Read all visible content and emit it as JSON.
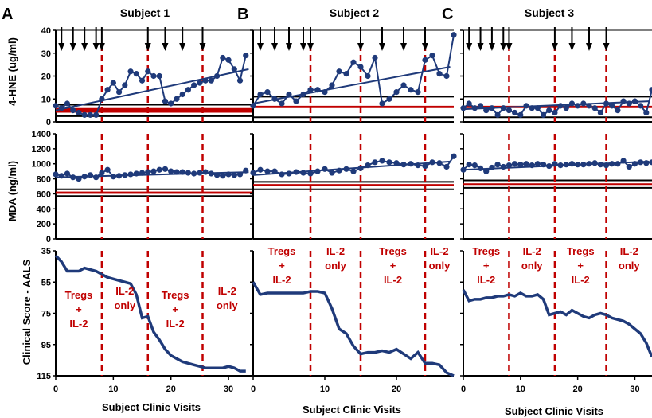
{
  "colors": {
    "series": "#1f3a7a",
    "reference": "#c00000",
    "dashed": "#c00000",
    "axis": "#000000",
    "phase_text": "#c00000"
  },
  "y_labels": {
    "hne": "4-HNE (ug/ml)",
    "mda": "MDA (ng/ml)",
    "score": "Clinical Score - AALS"
  },
  "x_label": "Subject Clinic Visits",
  "y_ticks": {
    "hne": [
      "0",
      "10",
      "20",
      "30",
      "40"
    ],
    "mda": [
      "0",
      "200",
      "400",
      "600",
      "800",
      "1000",
      "1200",
      "1400"
    ],
    "score": [
      "35",
      "55",
      "75",
      "95",
      "115"
    ]
  },
  "x_ticks": [
    "0",
    "10",
    "20",
    "30"
  ],
  "panels": [
    {
      "letter": "A",
      "title": "Subject 1",
      "phases": [
        {
          "lines": [
            "Tregs",
            "+",
            "IL-2"
          ]
        },
        {
          "lines": [
            "IL-2",
            "only"
          ]
        },
        {
          "lines": [
            "Tregs",
            "+",
            "IL-2"
          ]
        },
        {
          "lines": [
            "IL-2",
            "only"
          ]
        }
      ]
    },
    {
      "letter": "B",
      "title": "Subject 2",
      "phases": [
        {
          "lines": [
            "Tregs",
            "+",
            "IL-2"
          ]
        },
        {
          "lines": [
            "IL-2",
            "only"
          ]
        },
        {
          "lines": [
            "Tregs",
            "+",
            "IL-2"
          ]
        },
        {
          "lines": [
            "IL-2",
            "only"
          ]
        }
      ]
    },
    {
      "letter": "C",
      "title": "Subject 3",
      "phases": [
        {
          "lines": [
            "Tregs",
            "+",
            "IL-2"
          ]
        },
        {
          "lines": [
            "IL-2",
            "only"
          ]
        },
        {
          "lines": [
            "Tregs",
            "+",
            "IL-2"
          ]
        },
        {
          "lines": [
            "IL-2",
            "only"
          ]
        }
      ]
    }
  ],
  "chart_data": [
    {
      "type": "line",
      "subject": "Subject 1",
      "xlim": [
        0,
        34
      ],
      "boundaries": [
        8,
        16,
        25.5
      ],
      "arrows": [
        1,
        3,
        5,
        7,
        8,
        16,
        19,
        22,
        25.5
      ],
      "hne": {
        "ylim": [
          0,
          40
        ],
        "x": [
          0,
          1,
          2,
          3,
          4,
          5,
          6,
          7,
          8,
          9,
          10,
          11,
          12,
          13,
          14,
          15,
          16,
          17,
          18,
          19,
          20,
          21,
          22,
          23,
          24,
          25,
          26,
          27,
          28,
          29,
          30,
          31,
          32,
          33
        ],
        "y": [
          7,
          6,
          8,
          5,
          4,
          3,
          3,
          3,
          10,
          14,
          17,
          13,
          16,
          22,
          21,
          18,
          22,
          20,
          20,
          9,
          8,
          10,
          12,
          14,
          16,
          17,
          18,
          18,
          20,
          28,
          27,
          23,
          18,
          29
        ],
        "trend": [
          5,
          23
        ],
        "ref": [
          [
            4
          ],
          [
            6
          ]
        ],
        "ref_black": [
          2.5,
          7.5
        ]
      },
      "mda": {
        "ylim": [
          0,
          1400
        ],
        "x": [
          0,
          1,
          2,
          3,
          4,
          5,
          6,
          7,
          8,
          9,
          10,
          11,
          12,
          13,
          14,
          15,
          16,
          17,
          18,
          19,
          20,
          21,
          22,
          23,
          24,
          25,
          26,
          27,
          28,
          29,
          30,
          31,
          32,
          33
        ],
        "y": [
          860,
          840,
          870,
          820,
          800,
          830,
          850,
          820,
          880,
          920,
          830,
          840,
          850,
          860,
          870,
          880,
          890,
          900,
          920,
          930,
          900,
          890,
          890,
          880,
          870,
          880,
          890,
          870,
          850,
          840,
          860,
          850,
          860,
          910
        ],
        "trend": [
          820,
          890
        ],
        "ref": [
          [
            600
          ],
          [
            630
          ]
        ],
        "ref_black": [
          570,
          660
        ]
      },
      "score": {
        "ylim": [
          115,
          35
        ],
        "x": [
          0,
          1,
          2,
          3,
          4,
          5,
          6,
          7,
          8,
          9,
          10,
          11,
          12,
          13,
          14,
          15,
          16,
          17,
          18,
          19,
          20,
          21,
          22,
          23,
          24,
          25,
          26,
          27,
          28,
          29,
          30,
          31,
          32,
          33
        ],
        "y": [
          38,
          42,
          48,
          48,
          48,
          46,
          47,
          48,
          50,
          52,
          53,
          54,
          55,
          56,
          63,
          78,
          77,
          87,
          92,
          98,
          102,
          104,
          106,
          107,
          108,
          109,
          110,
          110,
          110,
          110,
          109,
          110,
          112,
          112
        ]
      }
    },
    {
      "type": "line",
      "subject": "Subject 2",
      "xlim": [
        0,
        28
      ],
      "boundaries": [
        8,
        15,
        24
      ],
      "arrows": [
        1,
        3,
        5,
        7,
        8,
        15,
        18,
        21,
        24
      ],
      "hne": {
        "ylim": [
          0,
          40
        ],
        "x": [
          0,
          1,
          2,
          3,
          4,
          5,
          6,
          7,
          8,
          9,
          10,
          11,
          12,
          13,
          14,
          15,
          16,
          17,
          18,
          19,
          20,
          21,
          22,
          23,
          24,
          25,
          26,
          27,
          28
        ],
        "y": [
          7,
          12,
          13,
          10,
          8,
          12,
          9,
          12,
          14,
          14,
          13,
          16,
          22,
          21,
          26,
          24,
          20,
          28,
          8,
          10,
          13,
          16,
          14,
          13,
          27,
          29,
          21,
          20,
          38
        ],
        "trend": [
          8,
          24
        ],
        "ref": [
          [
            6
          ],
          [
            7
          ]
        ],
        "ref_black": [
          2,
          11
        ]
      },
      "mda": {
        "ylim": [
          0,
          1400
        ],
        "x": [
          0,
          1,
          2,
          3,
          4,
          5,
          6,
          7,
          8,
          9,
          10,
          11,
          12,
          13,
          14,
          15,
          16,
          17,
          18,
          19,
          20,
          21,
          22,
          23,
          24,
          25,
          26,
          27,
          28
        ],
        "y": [
          880,
          920,
          900,
          900,
          860,
          870,
          890,
          880,
          870,
          900,
          930,
          880,
          910,
          930,
          900,
          940,
          980,
          1020,
          1040,
          1020,
          1010,
          990,
          1000,
          980,
          970,
          1020,
          1010,
          960,
          1100
        ],
        "trend": [
          850,
          1030
        ],
        "ref": [
          [
            700
          ],
          [
            730
          ]
        ],
        "ref_black": [
          660,
          760
        ]
      },
      "score": {
        "ylim": [
          115,
          35
        ],
        "x": [
          0,
          1,
          2,
          3,
          4,
          5,
          6,
          7,
          8,
          9,
          10,
          11,
          12,
          13,
          14,
          15,
          16,
          17,
          18,
          19,
          20,
          21,
          22,
          23,
          24,
          25,
          26,
          27,
          28
        ],
        "y": [
          55,
          63,
          62,
          62,
          62,
          62,
          62,
          62,
          61,
          61,
          62,
          72,
          85,
          88,
          96,
          101,
          100,
          100,
          99,
          100,
          98,
          101,
          104,
          100,
          107,
          107,
          108,
          113,
          115
        ]
      }
    },
    {
      "type": "line",
      "subject": "Subject 3",
      "xlim": [
        0,
        33
      ],
      "boundaries": [
        8,
        16,
        25
      ],
      "arrows": [
        1,
        3,
        5,
        7,
        8,
        16,
        19,
        22,
        25
      ],
      "hne": {
        "ylim": [
          0,
          40
        ],
        "x": [
          0,
          1,
          2,
          3,
          4,
          5,
          6,
          7,
          8,
          9,
          10,
          11,
          12,
          13,
          14,
          15,
          16,
          17,
          18,
          19,
          20,
          21,
          22,
          23,
          24,
          25,
          26,
          27,
          28,
          29,
          30,
          31,
          32,
          33
        ],
        "y": [
          6,
          8,
          6,
          7,
          5,
          6,
          3,
          6,
          5,
          4,
          3,
          7,
          6,
          6,
          3,
          5,
          4,
          7,
          6,
          8,
          7,
          8,
          7,
          6,
          4,
          8,
          7,
          5,
          9,
          8,
          9,
          7,
          4,
          14
        ],
        "trend": [
          5.5,
          9
        ],
        "ref": [
          [
            6
          ],
          [
            7
          ]
        ],
        "ref_black": [
          2,
          11
        ]
      },
      "mda": {
        "ylim": [
          0,
          1400
        ],
        "x": [
          0,
          1,
          2,
          3,
          4,
          5,
          6,
          7,
          8,
          9,
          10,
          11,
          12,
          13,
          14,
          15,
          16,
          17,
          18,
          19,
          20,
          21,
          22,
          23,
          24,
          25,
          26,
          27,
          28,
          29,
          30,
          31,
          32,
          33
        ],
        "y": [
          920,
          990,
          980,
          940,
          900,
          950,
          990,
          960,
          980,
          1000,
          990,
          1000,
          980,
          1000,
          990,
          970,
          1000,
          980,
          990,
          1000,
          990,
          990,
          1000,
          1010,
          990,
          980,
          1000,
          1000,
          1040,
          960,
          1000,
          1020,
          1010,
          1020
        ],
        "trend": [
          920,
          1030
        ],
        "ref": [
          [
            720
          ],
          [
            740
          ]
        ],
        "ref_black": [
          680,
          780
        ]
      },
      "score": {
        "ylim": [
          115,
          35
        ],
        "x": [
          0,
          1,
          2,
          3,
          4,
          5,
          6,
          7,
          8,
          9,
          10,
          11,
          12,
          13,
          14,
          15,
          16,
          17,
          18,
          19,
          20,
          21,
          22,
          23,
          24,
          25,
          26,
          27,
          28,
          29,
          30,
          31,
          32,
          33
        ],
        "y": [
          60,
          67,
          66,
          66,
          65,
          65,
          64,
          64,
          63,
          64,
          62,
          64,
          64,
          63,
          66,
          76,
          75,
          74,
          76,
          73,
          75,
          77,
          78,
          76,
          75,
          76,
          78,
          79,
          80,
          82,
          85,
          88,
          94,
          103
        ]
      }
    }
  ]
}
